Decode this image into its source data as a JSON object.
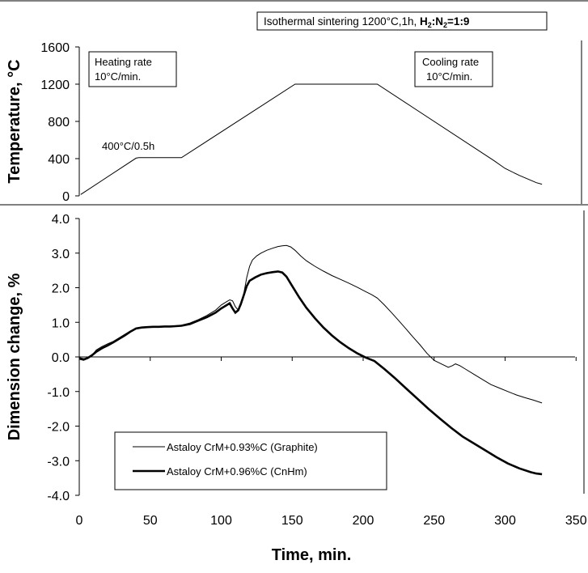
{
  "header": {
    "conditions_prefix": "Isothermal sintering 1200°C,1h, ",
    "conditions_atmosphere": "H",
    "sub1": "2",
    "colon": ":N",
    "sub2": "2",
    "ratio": "=1:9"
  },
  "chart_data": [
    {
      "type": "line",
      "ylabel": "Temperature, °C",
      "ylim": [
        0,
        1600
      ],
      "yticks": [
        "0",
        "400",
        "800",
        "1200",
        "1600"
      ],
      "xlim": [
        0,
        350
      ],
      "annotations": {
        "heating_line1": "Heating rate",
        "heating_line2": "10°C/min.",
        "cooling_line1": "Cooling rate",
        "cooling_line2": "10°C/min.",
        "hold": "400°C/0.5h"
      },
      "series": [
        {
          "x": [
            1,
            40,
            42,
            72,
            152,
            155,
            210,
            292,
            300,
            310,
            318,
            322,
            326
          ],
          "y": [
            15,
            405,
            410,
            410,
            1200,
            1200,
            1200,
            380,
            295,
            220,
            168,
            142,
            125
          ]
        }
      ]
    },
    {
      "type": "line",
      "xlabel": "Time, min.",
      "ylabel": "Dimension change, %",
      "xlim": [
        0,
        350
      ],
      "ylim": [
        -4.0,
        4.0
      ],
      "xticks": [
        "0",
        "50",
        "100",
        "150",
        "200",
        "250",
        "300",
        "350"
      ],
      "yticks": [
        "-4.0",
        "-3.0",
        "-2.0",
        "-1.0",
        "0.0",
        "1.0",
        "2.0",
        "3.0",
        "4.0"
      ],
      "legend_position": "bottom-left",
      "series": [
        {
          "name": "Astaloy CrM+0.93%C (Graphite)",
          "line_style": "thin",
          "x": [
            0,
            3,
            6,
            9,
            12,
            16,
            20,
            24,
            28,
            32,
            36,
            40,
            44,
            48,
            52,
            56,
            60,
            64,
            68,
            72,
            78,
            84,
            90,
            96,
            100,
            104,
            106,
            108,
            110,
            112,
            114,
            116,
            118,
            120,
            122,
            125,
            128,
            132,
            136,
            140,
            143,
            146,
            149,
            152,
            156,
            160,
            166,
            172,
            178,
            184,
            190,
            196,
            202,
            206,
            210,
            215,
            220,
            225,
            230,
            235,
            240,
            245,
            250,
            255,
            260,
            263,
            265,
            268,
            272,
            278,
            284,
            290,
            296,
            302,
            308,
            314,
            320,
            326
          ],
          "y": [
            -0.02,
            -0.05,
            -0.03,
            0.05,
            0.2,
            0.3,
            0.38,
            0.45,
            0.55,
            0.65,
            0.75,
            0.83,
            0.86,
            0.87,
            0.88,
            0.88,
            0.88,
            0.89,
            0.9,
            0.92,
            0.98,
            1.08,
            1.2,
            1.35,
            1.5,
            1.6,
            1.65,
            1.62,
            1.45,
            1.35,
            1.5,
            1.85,
            2.3,
            2.62,
            2.8,
            2.92,
            3.0,
            3.08,
            3.14,
            3.19,
            3.21,
            3.22,
            3.18,
            3.08,
            2.92,
            2.78,
            2.62,
            2.48,
            2.35,
            2.24,
            2.13,
            2.01,
            1.88,
            1.8,
            1.7,
            1.5,
            1.28,
            1.05,
            0.82,
            0.58,
            0.35,
            0.1,
            -0.1,
            -0.2,
            -0.3,
            -0.25,
            -0.2,
            -0.25,
            -0.35,
            -0.5,
            -0.65,
            -0.8,
            -0.9,
            -1.0,
            -1.1,
            -1.18,
            -1.25,
            -1.33
          ]
        },
        {
          "name": "Astaloy CrM+0.96%C (CnHm)",
          "line_style": "thick",
          "x": [
            0,
            3,
            6,
            9,
            12,
            16,
            20,
            24,
            28,
            32,
            36,
            40,
            44,
            48,
            52,
            56,
            60,
            64,
            68,
            72,
            78,
            84,
            90,
            96,
            100,
            104,
            106,
            108,
            110,
            112,
            114,
            116,
            118,
            120,
            124,
            128,
            132,
            136,
            140,
            143,
            146,
            150,
            155,
            160,
            166,
            172,
            178,
            184,
            190,
            196,
            202,
            208,
            215,
            222,
            230,
            238,
            246,
            254,
            262,
            270,
            278,
            286,
            294,
            302,
            310,
            318,
            322,
            326
          ],
          "y": [
            -0.05,
            -0.08,
            -0.03,
            0.05,
            0.15,
            0.25,
            0.33,
            0.42,
            0.52,
            0.62,
            0.73,
            0.82,
            0.85,
            0.86,
            0.87,
            0.87,
            0.88,
            0.88,
            0.89,
            0.9,
            0.95,
            1.05,
            1.15,
            1.28,
            1.4,
            1.5,
            1.55,
            1.4,
            1.28,
            1.35,
            1.55,
            1.8,
            2.05,
            2.2,
            2.3,
            2.38,
            2.42,
            2.45,
            2.47,
            2.44,
            2.32,
            2.05,
            1.72,
            1.42,
            1.12,
            0.85,
            0.62,
            0.42,
            0.25,
            0.1,
            -0.02,
            -0.12,
            -0.35,
            -0.6,
            -0.9,
            -1.2,
            -1.5,
            -1.78,
            -2.05,
            -2.3,
            -2.5,
            -2.7,
            -2.9,
            -3.08,
            -3.22,
            -3.33,
            -3.37,
            -3.39
          ]
        }
      ]
    }
  ]
}
